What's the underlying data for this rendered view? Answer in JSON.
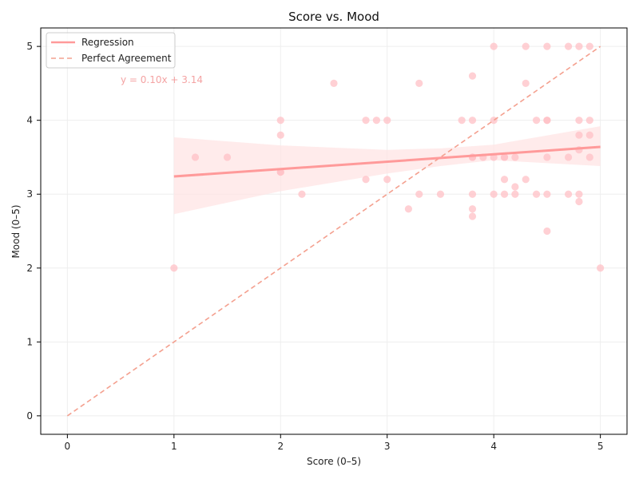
{
  "chart_data": {
    "type": "scatter",
    "title": "Score vs. Mood",
    "xlabel": "Score (0–5)",
    "ylabel": "Mood (0–5)",
    "xlim": [
      -0.25,
      5.25
    ],
    "ylim": [
      -0.25,
      5.25
    ],
    "xticks": [
      0,
      1,
      2,
      3,
      4,
      5
    ],
    "yticks": [
      0,
      1,
      2,
      3,
      4,
      5
    ],
    "grid": true,
    "legend_position": "top-left",
    "equation_text": "y = 0.10x + 3.14",
    "colors": {
      "points": "#ffc0c6",
      "regression": "#ff9a9a",
      "band": "#ffe3e3",
      "perfect": "#f4a08f",
      "equation": "#f4a3a3",
      "grid": "#eeeeee",
      "axis": "#000000"
    },
    "series": [
      {
        "name": "Regression",
        "kind": "line",
        "slope": 0.1,
        "intercept": 3.14,
        "x_range": [
          1.0,
          5.0
        ],
        "ci_band": {
          "x": [
            1.0,
            2.0,
            3.0,
            3.5,
            4.0,
            5.0
          ],
          "lower": [
            2.73,
            3.04,
            3.28,
            3.38,
            3.46,
            3.38
          ],
          "upper": [
            3.77,
            3.66,
            3.6,
            3.62,
            3.67,
            3.92
          ]
        }
      },
      {
        "name": "Perfect Agreement",
        "kind": "dashed-line",
        "x": [
          0,
          5
        ],
        "y": [
          0,
          5
        ]
      },
      {
        "name": "",
        "kind": "points",
        "x": [
          1.0,
          1.2,
          1.5,
          2.0,
          2.0,
          2.0,
          2.0,
          2.2,
          2.5,
          2.8,
          2.8,
          2.9,
          3.0,
          3.0,
          3.2,
          3.3,
          3.3,
          3.5,
          3.7,
          3.8,
          3.8,
          3.8,
          3.8,
          3.8,
          3.8,
          3.8,
          3.9,
          4.0,
          4.0,
          4.0,
          4.0,
          4.1,
          4.1,
          4.1,
          4.1,
          4.2,
          4.2,
          4.2,
          4.3,
          4.3,
          4.3,
          4.4,
          4.4,
          4.5,
          4.5,
          4.5,
          4.5,
          4.5,
          4.5,
          4.7,
          4.7,
          4.7,
          4.8,
          4.8,
          4.8,
          4.8,
          4.8,
          4.8,
          4.9,
          4.9,
          4.9,
          4.9,
          5.0
        ],
        "y": [
          2.0,
          3.5,
          3.5,
          4.0,
          3.8,
          3.3,
          3.3,
          3.0,
          4.5,
          4.0,
          3.2,
          4.0,
          4.0,
          3.2,
          2.8,
          4.5,
          3.0,
          3.0,
          4.0,
          4.6,
          4.0,
          3.5,
          3.0,
          2.8,
          2.7,
          3.5,
          3.5,
          5.0,
          4.0,
          3.5,
          3.0,
          3.5,
          3.2,
          3.0,
          3.5,
          3.5,
          3.1,
          3.0,
          5.0,
          4.5,
          3.2,
          4.0,
          3.0,
          5.0,
          4.0,
          3.5,
          3.0,
          2.5,
          4.0,
          5.0,
          3.5,
          3.0,
          5.0,
          4.0,
          3.8,
          3.6,
          3.0,
          2.9,
          5.0,
          4.0,
          3.8,
          3.5,
          2.0
        ]
      }
    ]
  }
}
